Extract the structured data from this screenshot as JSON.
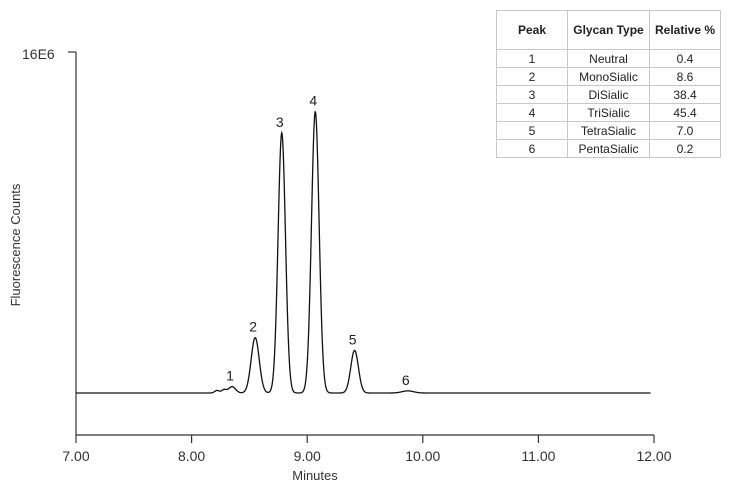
{
  "chart_data": {
    "type": "line",
    "xlabel": "Minutes",
    "ylabel": "Fluorescence Counts",
    "xlim": [
      7.0,
      12.0
    ],
    "x_ticks": [
      "7.00",
      "8.00",
      "9.00",
      "10.00",
      "11.00",
      "12.00"
    ],
    "y_tick_label": "16E6",
    "ylim": [
      0,
      16000000
    ],
    "baseline": 0,
    "peaks": [
      {
        "label": "1",
        "x": 8.35,
        "height": 300000,
        "width": 0.03
      },
      {
        "label": "2",
        "x": 8.55,
        "height": 2600000,
        "width": 0.035
      },
      {
        "label": "3",
        "x": 8.78,
        "height": 12200000,
        "width": 0.032
      },
      {
        "label": "4",
        "x": 9.07,
        "height": 13200000,
        "width": 0.033
      },
      {
        "label": "5",
        "x": 9.41,
        "height": 2000000,
        "width": 0.033
      },
      {
        "label": "6",
        "x": 9.87,
        "height": 100000,
        "width": 0.05
      }
    ],
    "minor_peaks": [
      {
        "x": 8.22,
        "height": 120000,
        "width": 0.02
      },
      {
        "x": 8.28,
        "height": 150000,
        "width": 0.02
      }
    ],
    "line_color": "#111111"
  },
  "table": {
    "headers": [
      "Peak",
      "Glycan Type",
      "Relative %"
    ],
    "rows": [
      [
        "1",
        "Neutral",
        "0.4"
      ],
      [
        "2",
        "MonoSialic",
        "8.6"
      ],
      [
        "3",
        "DiSialic",
        "38.4"
      ],
      [
        "4",
        "TriSialic",
        "45.4"
      ],
      [
        "5",
        "TetraSialic",
        "7.0"
      ],
      [
        "6",
        "PentaSialic",
        "0.2"
      ]
    ]
  }
}
